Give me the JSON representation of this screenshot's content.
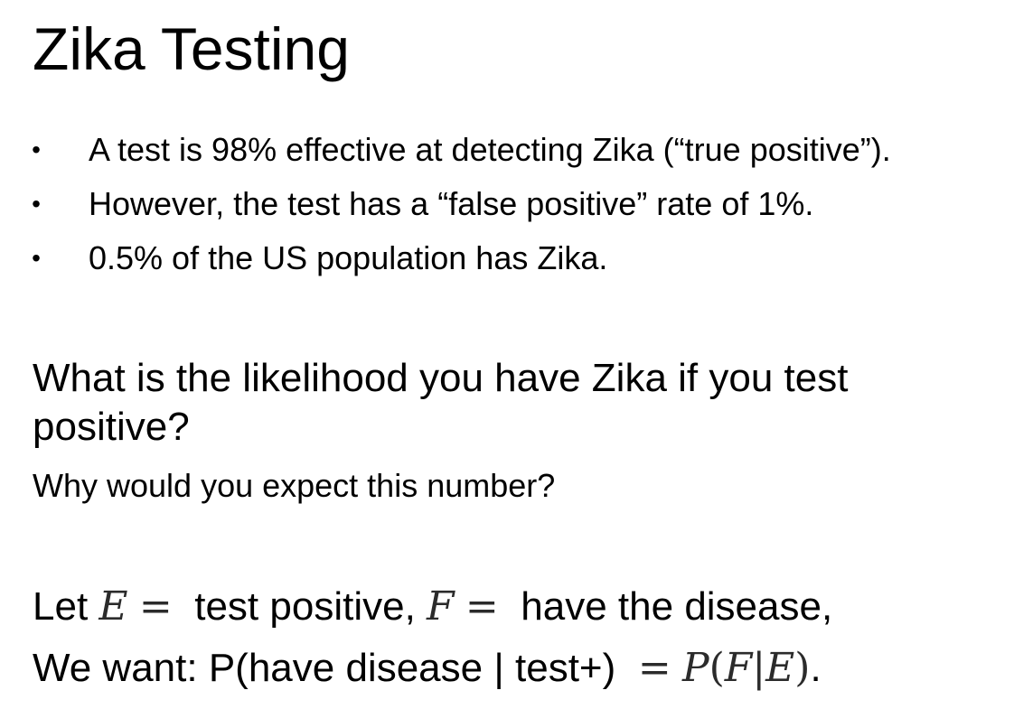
{
  "slide": {
    "title": "Zika Testing",
    "bullet_glyph": "•",
    "bullets": [
      {
        "text": "A test is 98% effective at detecting Zika (“true positive”)."
      },
      {
        "text": "However, the test has a “false positive” rate of 1%."
      },
      {
        "text": "0.5% of the US population has Zika."
      }
    ],
    "question": "What is the likelihood you have Zika if you test positive?",
    "subquestion": "Why would you expect this number?",
    "definition_line": {
      "prefix": "Let ",
      "var_e": "E",
      "equals_1": "=",
      "e_meaning": " test positive, ",
      "var_f": "F",
      "equals_2": "=",
      "f_meaning": " have the disease,"
    },
    "goal_line": {
      "prefix": "We want: P(have disease | test+) ",
      "equals": "=",
      "formula_p": "P",
      "formula_open": "(",
      "formula_f": "F",
      "formula_bar": "|",
      "formula_e": "E",
      "formula_close": ")",
      "suffix": "."
    }
  }
}
